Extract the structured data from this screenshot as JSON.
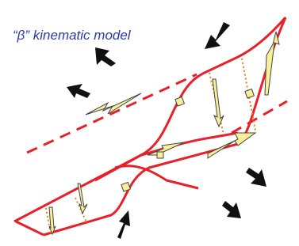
{
  "header": {
    "title": "“β” kinematic model"
  }
}
